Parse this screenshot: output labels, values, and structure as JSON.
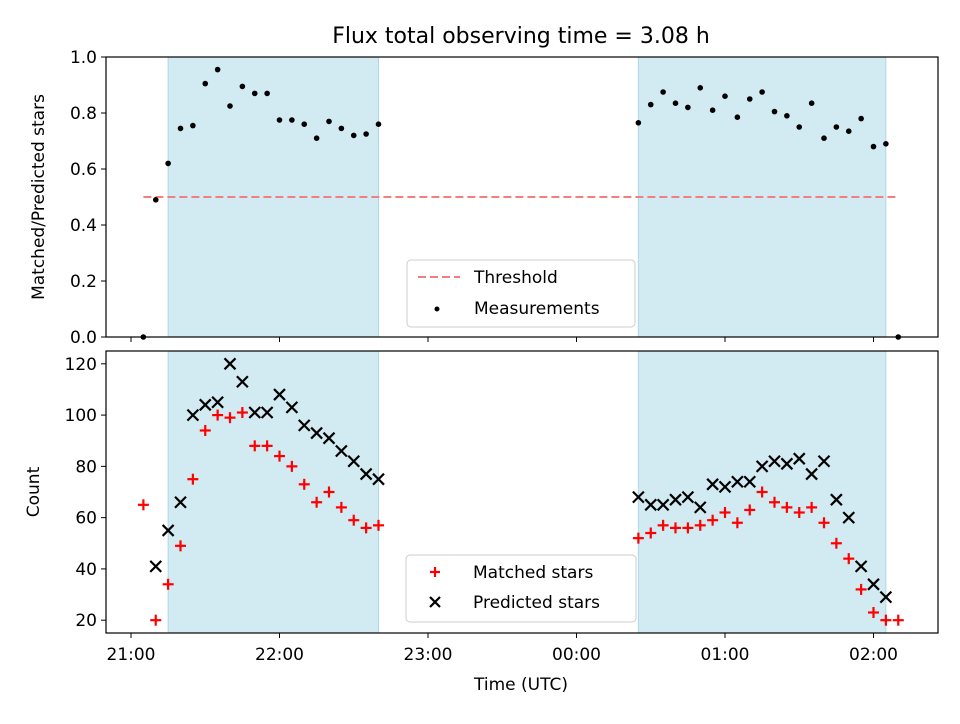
{
  "colors": {
    "band": "#add8e6",
    "threshold": "#f08080",
    "matched": "#ff0000",
    "predicted": "#000000",
    "measurement": "#000000"
  },
  "chart_data": [
    {
      "type": "scatter",
      "title": "Flux total observing time = 3.08 h",
      "xlabel": "",
      "ylabel": "Matched/Predicted stars",
      "x_ticks": [
        "21:00",
        "22:00",
        "23:00",
        "00:00",
        "01:00",
        "02:00"
      ],
      "x_range_hours_since_21": [
        -0.25,
        5.42
      ],
      "ylim": [
        0,
        1
      ],
      "y_ticks": [
        "0.0",
        "0.2",
        "0.4",
        "0.6",
        "0.8",
        "1.0"
      ],
      "shaded_intervals": [
        [
          "21:15",
          "22:40"
        ],
        [
          "00:25",
          "02:05"
        ]
      ],
      "threshold": {
        "label": "Threshold",
        "y": 0.5,
        "x_start": "21:05",
        "x_end": "02:10",
        "style": "dashed"
      },
      "legend": {
        "position": "lower center",
        "entries": [
          "Threshold",
          "Measurements"
        ]
      },
      "series": [
        {
          "name": "Measurements",
          "marker": "dot",
          "points": [
            [
              "21:05",
              0.0
            ],
            [
              "21:10",
              0.49
            ],
            [
              "21:15",
              0.62
            ],
            [
              "21:20",
              0.745
            ],
            [
              "21:25",
              0.755
            ],
            [
              "21:30",
              0.905
            ],
            [
              "21:35",
              0.955
            ],
            [
              "21:40",
              0.825
            ],
            [
              "21:45",
              0.895
            ],
            [
              "21:50",
              0.87
            ],
            [
              "21:55",
              0.87
            ],
            [
              "22:00",
              0.775
            ],
            [
              "22:05",
              0.775
            ],
            [
              "22:10",
              0.76
            ],
            [
              "22:15",
              0.71
            ],
            [
              "22:20",
              0.77
            ],
            [
              "22:25",
              0.745
            ],
            [
              "22:30",
              0.72
            ],
            [
              "22:35",
              0.725
            ],
            [
              "22:40",
              0.76
            ],
            [
              "00:25",
              0.765
            ],
            [
              "00:30",
              0.83
            ],
            [
              "00:35",
              0.875
            ],
            [
              "00:40",
              0.835
            ],
            [
              "00:45",
              0.82
            ],
            [
              "00:50",
              0.89
            ],
            [
              "00:55",
              0.81
            ],
            [
              "01:00",
              0.86
            ],
            [
              "01:05",
              0.785
            ],
            [
              "01:10",
              0.85
            ],
            [
              "01:15",
              0.875
            ],
            [
              "01:20",
              0.805
            ],
            [
              "01:25",
              0.79
            ],
            [
              "01:30",
              0.75
            ],
            [
              "01:35",
              0.835
            ],
            [
              "01:40",
              0.71
            ],
            [
              "01:45",
              0.75
            ],
            [
              "01:50",
              0.735
            ],
            [
              "01:55",
              0.78
            ],
            [
              "02:00",
              0.68
            ],
            [
              "02:05",
              0.69
            ],
            [
              "02:10",
              0.0
            ]
          ]
        }
      ]
    },
    {
      "type": "scatter",
      "title": "",
      "xlabel": "Time (UTC)",
      "ylabel": "Count",
      "x_ticks": [
        "21:00",
        "22:00",
        "23:00",
        "00:00",
        "01:00",
        "02:00"
      ],
      "x_range_hours_since_21": [
        -0.25,
        5.42
      ],
      "ylim": [
        15,
        125
      ],
      "y_ticks": [
        "20",
        "40",
        "60",
        "80",
        "100",
        "120"
      ],
      "shaded_intervals": [
        [
          "21:15",
          "22:40"
        ],
        [
          "00:25",
          "02:05"
        ]
      ],
      "legend": {
        "position": "lower center",
        "entries": [
          "Matched stars",
          "Predicted stars"
        ]
      },
      "series": [
        {
          "name": "Matched stars",
          "marker": "plus",
          "points": [
            [
              "21:05",
              65
            ],
            [
              "21:10",
              20
            ],
            [
              "21:15",
              34
            ],
            [
              "21:20",
              49
            ],
            [
              "21:25",
              75
            ],
            [
              "21:30",
              94
            ],
            [
              "21:35",
              100
            ],
            [
              "21:40",
              99
            ],
            [
              "21:45",
              101
            ],
            [
              "21:50",
              88
            ],
            [
              "21:55",
              88
            ],
            [
              "22:00",
              84
            ],
            [
              "22:05",
              80
            ],
            [
              "22:10",
              73
            ],
            [
              "22:15",
              66
            ],
            [
              "22:20",
              70
            ],
            [
              "22:25",
              64
            ],
            [
              "22:30",
              59
            ],
            [
              "22:35",
              56
            ],
            [
              "22:40",
              57
            ],
            [
              "00:25",
              52
            ],
            [
              "00:30",
              54
            ],
            [
              "00:35",
              57
            ],
            [
              "00:40",
              56
            ],
            [
              "00:45",
              56
            ],
            [
              "00:50",
              57
            ],
            [
              "00:55",
              59
            ],
            [
              "01:00",
              62
            ],
            [
              "01:05",
              58
            ],
            [
              "01:10",
              63
            ],
            [
              "01:15",
              70
            ],
            [
              "01:20",
              66
            ],
            [
              "01:25",
              64
            ],
            [
              "01:30",
              62
            ],
            [
              "01:35",
              64
            ],
            [
              "01:40",
              58
            ],
            [
              "01:45",
              50
            ],
            [
              "01:50",
              44
            ],
            [
              "01:55",
              32
            ],
            [
              "02:00",
              23
            ],
            [
              "02:05",
              20
            ],
            [
              "02:10",
              20
            ]
          ]
        },
        {
          "name": "Predicted stars",
          "marker": "x",
          "points": [
            [
              "21:10",
              41
            ],
            [
              "21:15",
              55
            ],
            [
              "21:20",
              66
            ],
            [
              "21:25",
              100
            ],
            [
              "21:30",
              104
            ],
            [
              "21:35",
              105
            ],
            [
              "21:40",
              120
            ],
            [
              "21:45",
              113
            ],
            [
              "21:50",
              101
            ],
            [
              "21:55",
              101
            ],
            [
              "22:00",
              108
            ],
            [
              "22:05",
              103
            ],
            [
              "22:10",
              96
            ],
            [
              "22:15",
              93
            ],
            [
              "22:20",
              91
            ],
            [
              "22:25",
              86
            ],
            [
              "22:30",
              82
            ],
            [
              "22:35",
              77
            ],
            [
              "22:40",
              75
            ],
            [
              "00:25",
              68
            ],
            [
              "00:30",
              65
            ],
            [
              "00:35",
              65
            ],
            [
              "00:40",
              67
            ],
            [
              "00:45",
              68
            ],
            [
              "00:50",
              64
            ],
            [
              "00:55",
              73
            ],
            [
              "01:00",
              72
            ],
            [
              "01:05",
              74
            ],
            [
              "01:10",
              74
            ],
            [
              "01:15",
              80
            ],
            [
              "01:20",
              82
            ],
            [
              "01:25",
              81
            ],
            [
              "01:30",
              83
            ],
            [
              "01:35",
              77
            ],
            [
              "01:40",
              82
            ],
            [
              "01:45",
              67
            ],
            [
              "01:50",
              60
            ],
            [
              "01:55",
              41
            ],
            [
              "02:00",
              34
            ],
            [
              "02:05",
              29
            ]
          ]
        }
      ]
    }
  ]
}
